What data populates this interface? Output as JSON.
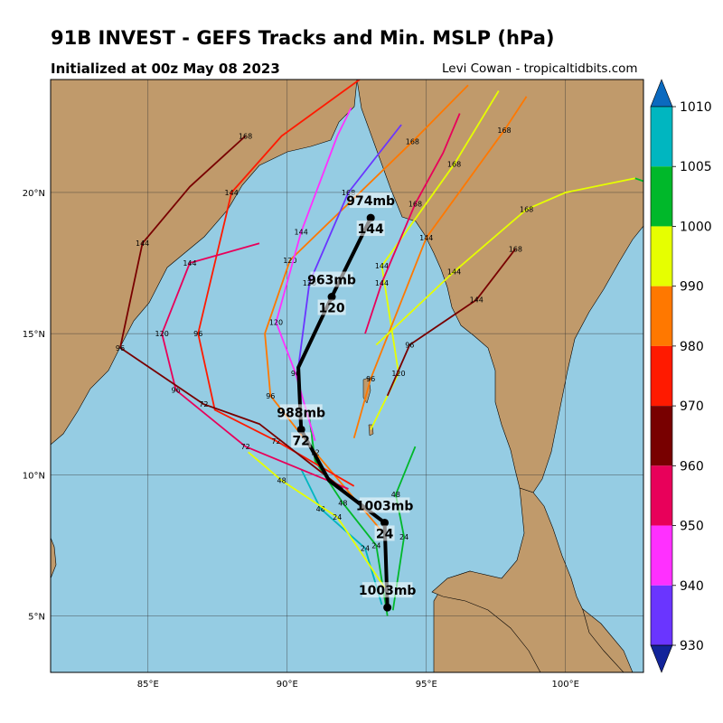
{
  "title": "91B INVEST - GEFS Tracks and Min. MSLP (hPa)",
  "subtitle": "Initialized at 00z May 08 2023",
  "credit": "Levi Cowan - tropicaltidbits.com",
  "map": {
    "lon_range": [
      81.5,
      102.8
    ],
    "lat_range": [
      3.0,
      24.0
    ],
    "x_ticks": [
      {
        "v": 85,
        "label": "85°E"
      },
      {
        "v": 90,
        "label": "90°E"
      },
      {
        "v": 95,
        "label": "95°E"
      },
      {
        "v": 100,
        "label": "100°E"
      }
    ],
    "y_ticks": [
      {
        "v": 5,
        "label": "5°N"
      },
      {
        "v": 10,
        "label": "10°N"
      },
      {
        "v": 15,
        "label": "15°N"
      },
      {
        "v": 20,
        "label": "20°N"
      }
    ],
    "colors": {
      "ocean": "#95cce3",
      "land": "#c09a6b"
    }
  },
  "colorbar": {
    "levels": [
      930,
      940,
      950,
      960,
      970,
      980,
      990,
      1000,
      1005,
      1010
    ],
    "colors": [
      "#6a35ff",
      "#ff30ff",
      "#e8005a",
      "#780000",
      "#ff1a00",
      "#ff7800",
      "#e6ff00",
      "#00b82a",
      "#00b6c0"
    ],
    "min_color": "#12249a",
    "max_color": "#0b6abf"
  },
  "chart_data": {
    "type": "track-map",
    "mean_track": [
      {
        "hour": 0,
        "lon": 93.6,
        "lat": 5.3,
        "mslp": 1003,
        "label": "1003mb"
      },
      {
        "hour": 24,
        "lon": 93.5,
        "lat": 8.3,
        "mslp": 1003,
        "label": "1003mb",
        "hour_label": "24"
      },
      {
        "hour": 48,
        "lon": 91.5,
        "lat": 9.8
      },
      {
        "hour": 72,
        "lon": 90.5,
        "lat": 11.6,
        "mslp": 988,
        "label": "988mb",
        "hour_label": "72"
      },
      {
        "hour": 96,
        "lon": 90.4,
        "lat": 13.8
      },
      {
        "hour": 120,
        "lon": 91.6,
        "lat": 16.3,
        "mslp": 963,
        "label": "963mb",
        "hour_label": "120"
      },
      {
        "hour": 144,
        "lon": 93.0,
        "lat": 19.1,
        "mslp": 974,
        "label": "974mb",
        "hour_label": "144"
      }
    ],
    "member_tracks": [
      {
        "color": "#00b82a",
        "points": [
          [
            93.6,
            5.0
          ],
          [
            93.2,
            7.5
          ],
          [
            92.0,
            9.0
          ],
          [
            91.0,
            10.5
          ],
          [
            90.8,
            12.0
          ]
        ],
        "labels": [
          [
            93.6,
            5.0,
            ""
          ],
          [
            93.2,
            7.5,
            "24"
          ],
          [
            92.0,
            9.0,
            "48"
          ]
        ]
      },
      {
        "color": "#00b82a",
        "points": [
          [
            93.8,
            5.2
          ],
          [
            94.2,
            7.8
          ],
          [
            93.9,
            9.3
          ],
          [
            94.6,
            11.0
          ]
        ],
        "labels": [
          [
            94.2,
            7.8,
            "24"
          ],
          [
            93.9,
            9.3,
            "48"
          ]
        ]
      },
      {
        "color": "#00b6c0",
        "points": [
          [
            93.4,
            5.4
          ],
          [
            92.8,
            7.4
          ],
          [
            91.2,
            8.8
          ],
          [
            90.5,
            10.2
          ]
        ],
        "labels": [
          [
            92.8,
            7.4,
            "24"
          ],
          [
            91.2,
            8.8,
            "48"
          ]
        ]
      },
      {
        "color": "#e6ff00",
        "points": [
          [
            93.5,
            6.0
          ],
          [
            91.8,
            8.5
          ],
          [
            89.8,
            9.8
          ],
          [
            88.6,
            10.8
          ]
        ],
        "labels": [
          [
            91.8,
            8.5,
            "24"
          ],
          [
            89.8,
            9.8,
            "48"
          ]
        ]
      },
      {
        "color": "#ff7800",
        "points": [
          [
            93.4,
            8.0
          ],
          [
            91.0,
            10.8
          ],
          [
            89.4,
            12.8
          ],
          [
            89.2,
            15.0
          ],
          [
            90.1,
            17.6
          ],
          [
            94.5,
            21.8
          ],
          [
            96.5,
            23.8
          ]
        ],
        "labels": [
          [
            91.0,
            10.8,
            "72"
          ],
          [
            89.4,
            12.8,
            "96"
          ],
          [
            90.1,
            17.6,
            "120"
          ],
          [
            94.5,
            21.8,
            "168"
          ]
        ]
      },
      {
        "color": "#ff1a00",
        "points": [
          [
            92.4,
            9.6
          ],
          [
            89.6,
            11.2
          ],
          [
            87.4,
            12.3
          ],
          [
            86.8,
            15.0
          ],
          [
            88.0,
            20.0
          ],
          [
            89.8,
            22.0
          ],
          [
            92.6,
            24.0
          ]
        ],
        "labels": [
          [
            89.6,
            11.2,
            "72"
          ],
          [
            86.8,
            15.0,
            "96"
          ],
          [
            88.0,
            20.0,
            "144"
          ]
        ]
      },
      {
        "color": "#e8005a",
        "points": [
          [
            92.2,
            9.5
          ],
          [
            88.5,
            11.0
          ],
          [
            86.0,
            13.0
          ],
          [
            85.5,
            15.0
          ],
          [
            86.5,
            17.5
          ],
          [
            89.0,
            18.2
          ]
        ],
        "labels": [
          [
            88.5,
            11.0,
            "72"
          ],
          [
            86.0,
            13.0,
            "96"
          ],
          [
            85.5,
            15.0,
            "120"
          ],
          [
            86.5,
            17.5,
            "144"
          ]
        ]
      },
      {
        "color": "#780000",
        "points": [
          [
            92.0,
            9.5
          ],
          [
            89.0,
            11.8
          ],
          [
            87.0,
            12.5
          ],
          [
            84.0,
            14.5
          ],
          [
            84.8,
            18.2
          ],
          [
            86.5,
            20.2
          ],
          [
            88.5,
            22.0
          ]
        ],
        "labels": [
          [
            87.0,
            12.5,
            "72"
          ],
          [
            84.0,
            14.5,
            "96"
          ],
          [
            84.8,
            18.2,
            "144"
          ],
          [
            88.5,
            22.0,
            "168"
          ]
        ]
      },
      {
        "color": "#ff30ff",
        "points": [
          [
            91.0,
            11.2
          ],
          [
            90.3,
            13.6
          ],
          [
            89.6,
            15.4
          ],
          [
            90.5,
            18.6
          ],
          [
            91.8,
            22.0
          ],
          [
            92.3,
            23.0
          ]
        ],
        "labels": [
          [
            90.3,
            13.6,
            "96"
          ],
          [
            89.6,
            15.4,
            "120"
          ],
          [
            90.5,
            18.6,
            "144"
          ]
        ]
      },
      {
        "color": "#6a35ff",
        "points": [
          [
            90.4,
            13.8
          ],
          [
            90.8,
            16.8
          ],
          [
            92.2,
            20.0
          ],
          [
            94.1,
            22.4
          ]
        ],
        "labels": [
          [
            90.8,
            16.8,
            "120"
          ],
          [
            92.2,
            20.0,
            "168"
          ]
        ]
      },
      {
        "color": "#e6ff00",
        "points": [
          [
            93.0,
            11.6
          ],
          [
            94.0,
            13.6
          ],
          [
            93.4,
            17.4
          ],
          [
            96.0,
            21.0
          ],
          [
            97.6,
            23.6
          ]
        ],
        "labels": [
          [
            94.0,
            13.6,
            "120"
          ],
          [
            93.4,
            17.4,
            "144"
          ],
          [
            96.0,
            21.0,
            "168"
          ]
        ]
      },
      {
        "color": "#ff7800",
        "points": [
          [
            92.4,
            11.3
          ],
          [
            93.0,
            13.4
          ],
          [
            95.0,
            18.4
          ],
          [
            97.8,
            22.2
          ],
          [
            98.6,
            23.4
          ]
        ],
        "labels": [
          [
            93.0,
            13.4,
            "96"
          ],
          [
            95.0,
            18.4,
            "144"
          ],
          [
            97.8,
            22.2,
            "168"
          ]
        ]
      },
      {
        "color": "#e8005a",
        "points": [
          [
            92.8,
            15.0
          ],
          [
            93.4,
            16.8
          ],
          [
            94.6,
            19.6
          ],
          [
            95.6,
            21.4
          ],
          [
            96.2,
            22.8
          ]
        ],
        "labels": [
          [
            93.4,
            16.8,
            "144"
          ],
          [
            94.6,
            19.6,
            "168"
          ]
        ]
      },
      {
        "color": "#780000",
        "points": [
          [
            93.6,
            12.8
          ],
          [
            94.4,
            14.6
          ],
          [
            96.8,
            16.2
          ],
          [
            98.2,
            18.0
          ]
        ],
        "labels": [
          [
            94.4,
            14.6,
            "96"
          ],
          [
            96.8,
            16.2,
            "144"
          ],
          [
            98.2,
            18.0,
            "168"
          ]
        ]
      },
      {
        "color": "#e6ff00",
        "points": [
          [
            93.2,
            14.6
          ],
          [
            96.0,
            17.2
          ],
          [
            98.6,
            19.4
          ],
          [
            100.0,
            20.0
          ],
          [
            102.5,
            20.5
          ]
        ],
        "labels": [
          [
            96.0,
            17.2,
            "144"
          ],
          [
            98.6,
            19.4,
            "168"
          ]
        ]
      },
      {
        "color": "#00b82a",
        "points": [
          [
            102.5,
            20.5
          ],
          [
            102.8,
            20.4
          ]
        ],
        "labels": []
      }
    ]
  }
}
